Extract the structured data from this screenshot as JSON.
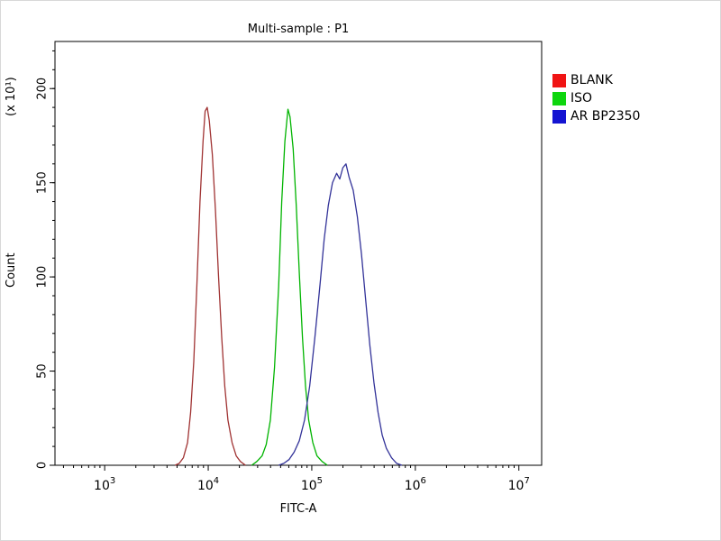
{
  "legend": {
    "items": [
      {
        "label": "BLANK",
        "color": "#f01414"
      },
      {
        "label": "ISO",
        "color": "#0ed60e"
      },
      {
        "label": "AR BP2350",
        "color": "#1414d2"
      }
    ]
  },
  "chart_data": {
    "type": "line",
    "title": "Multi-sample : P1",
    "xlabel": "FITC-A",
    "ylabel": "Count",
    "y_axis_multiplier": "(x 10¹)",
    "x_scale": "log10",
    "x_log_range": [
      2.52,
      7.22
    ],
    "x_ticks_exponents": [
      3,
      4,
      5,
      6,
      7
    ],
    "ylim": [
      0,
      225
    ],
    "y_ticks": [
      0,
      50,
      100,
      150,
      200
    ],
    "y_minor_step": 10,
    "grid": false,
    "legend_position": "right-outside",
    "series": [
      {
        "name": "BLANK",
        "line_color": "#a03333",
        "peak_x_value": 9500,
        "peak_count": 190,
        "points_log10x_count": [
          [
            3.68,
            0
          ],
          [
            3.72,
            1
          ],
          [
            3.76,
            4
          ],
          [
            3.8,
            12
          ],
          [
            3.83,
            28
          ],
          [
            3.86,
            55
          ],
          [
            3.89,
            95
          ],
          [
            3.92,
            140
          ],
          [
            3.95,
            172
          ],
          [
            3.97,
            188
          ],
          [
            3.99,
            190
          ],
          [
            4.01,
            183
          ],
          [
            4.04,
            165
          ],
          [
            4.07,
            135
          ],
          [
            4.1,
            100
          ],
          [
            4.13,
            68
          ],
          [
            4.16,
            42
          ],
          [
            4.19,
            24
          ],
          [
            4.23,
            12
          ],
          [
            4.27,
            5
          ],
          [
            4.31,
            2
          ],
          [
            4.36,
            0
          ]
        ]
      },
      {
        "name": "ISO",
        "line_color": "#00b400",
        "peak_x_value": 60000,
        "peak_count": 189,
        "points_log10x_count": [
          [
            4.42,
            0
          ],
          [
            4.47,
            2
          ],
          [
            4.52,
            5
          ],
          [
            4.56,
            11
          ],
          [
            4.6,
            24
          ],
          [
            4.64,
            52
          ],
          [
            4.68,
            95
          ],
          [
            4.71,
            140
          ],
          [
            4.74,
            172
          ],
          [
            4.77,
            189
          ],
          [
            4.79,
            185
          ],
          [
            4.82,
            168
          ],
          [
            4.85,
            138
          ],
          [
            4.88,
            102
          ],
          [
            4.91,
            68
          ],
          [
            4.94,
            42
          ],
          [
            4.97,
            24
          ],
          [
            5.01,
            12
          ],
          [
            5.05,
            5
          ],
          [
            5.1,
            2
          ],
          [
            5.15,
            0
          ]
        ]
      },
      {
        "name": "AR BP2350",
        "line_color": "#333399",
        "peak_x_value": 210000,
        "peak_count": 160,
        "points_log10x_count": [
          [
            4.68,
            0
          ],
          [
            4.73,
            1
          ],
          [
            4.78,
            3
          ],
          [
            4.83,
            7
          ],
          [
            4.88,
            13
          ],
          [
            4.93,
            24
          ],
          [
            4.98,
            42
          ],
          [
            5.03,
            68
          ],
          [
            5.08,
            96
          ],
          [
            5.12,
            120
          ],
          [
            5.16,
            138
          ],
          [
            5.2,
            150
          ],
          [
            5.24,
            155
          ],
          [
            5.27,
            152
          ],
          [
            5.3,
            158
          ],
          [
            5.33,
            160
          ],
          [
            5.36,
            153
          ],
          [
            5.4,
            146
          ],
          [
            5.44,
            132
          ],
          [
            5.48,
            112
          ],
          [
            5.52,
            88
          ],
          [
            5.56,
            64
          ],
          [
            5.6,
            44
          ],
          [
            5.64,
            28
          ],
          [
            5.68,
            16
          ],
          [
            5.72,
            9
          ],
          [
            5.77,
            4
          ],
          [
            5.82,
            1
          ],
          [
            5.87,
            0
          ]
        ]
      }
    ]
  }
}
